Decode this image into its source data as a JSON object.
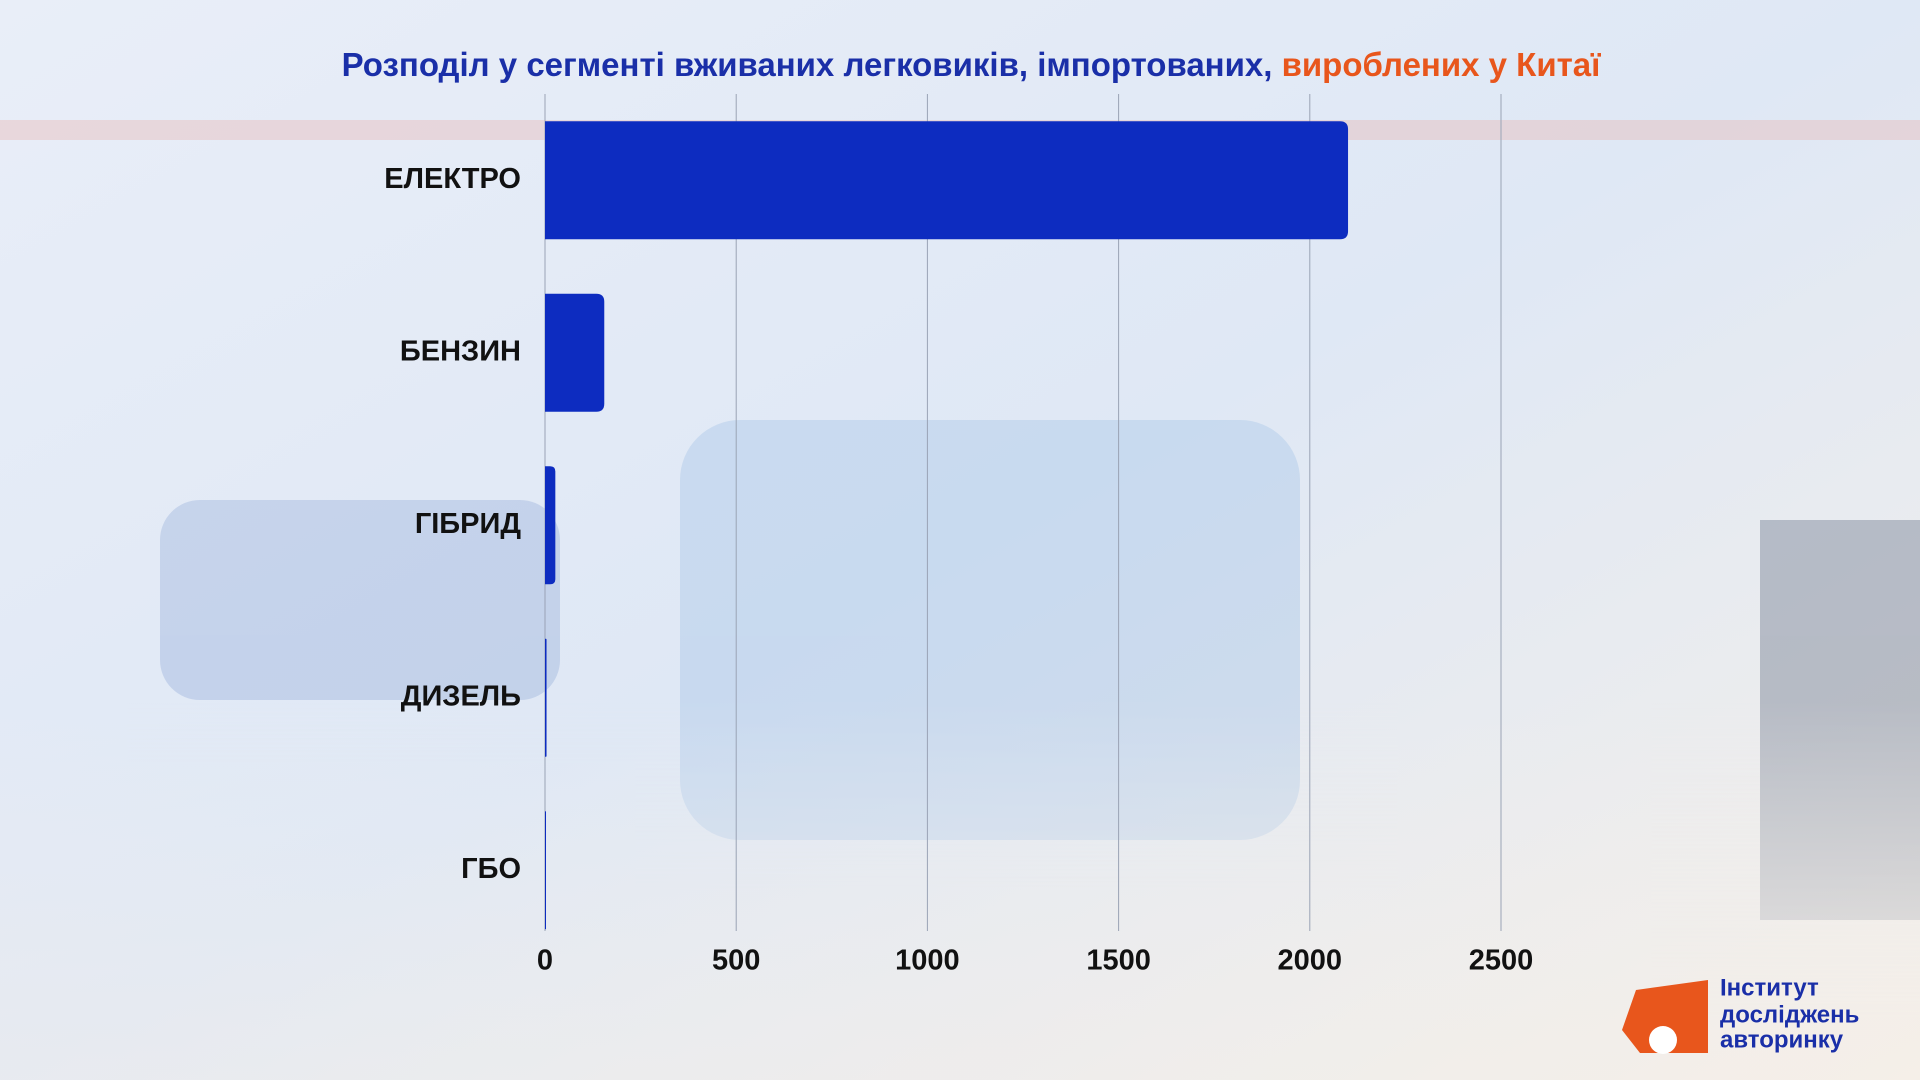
{
  "chart_data": {
    "type": "bar",
    "orientation": "horizontal",
    "title": [
      "Розподіл у сегменті вживаних легковиків, імпортованих,",
      "вироблених у Китаї"
    ],
    "title_colors": [
      "#1a2fa8",
      "#e8561c"
    ],
    "categories": [
      "ЕЛЕКТРО",
      "БЕНЗИН",
      "ГІБРИД",
      "ДИЗЕЛЬ",
      "ГБО"
    ],
    "values": [
      2100,
      155,
      27,
      4,
      2
    ],
    "color": "#0d2cc0",
    "xlim": [
      0,
      2500
    ],
    "xticks": [
      0,
      500,
      1000,
      1500,
      2000,
      2500
    ],
    "grid": true
  },
  "logo": {
    "lines": [
      "Інститут",
      "досліджень",
      "авторинку"
    ]
  }
}
